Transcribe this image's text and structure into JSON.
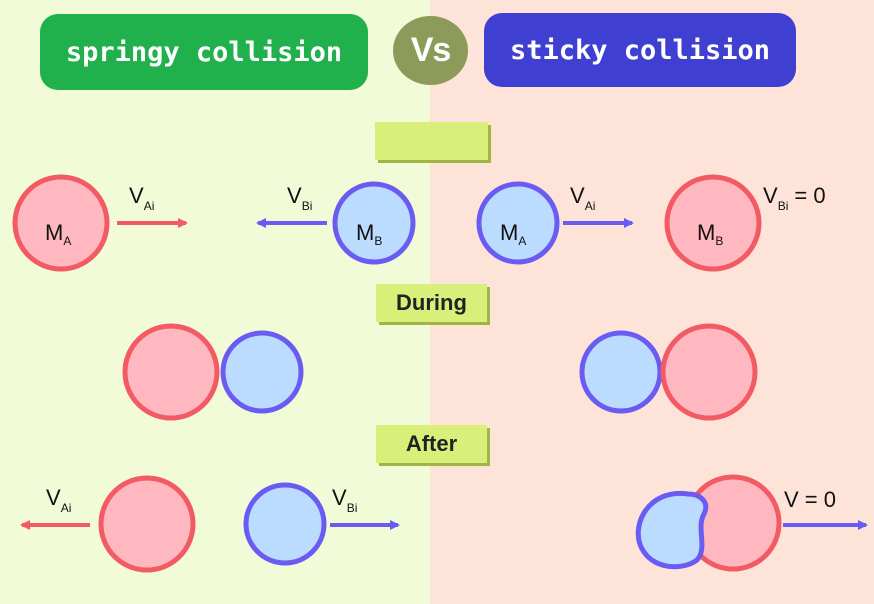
{
  "header": {
    "springy_title": "springy collision",
    "vs_label": "Vs",
    "sticky_title": "sticky collision"
  },
  "stages": {
    "before_label": "",
    "during_label": "During",
    "after_label": "After"
  },
  "labels": {
    "mass_a": "M",
    "mass_a_sub": "A",
    "mass_b": "M",
    "mass_b_sub": "B",
    "v": "V",
    "v_ai_sub": "Ai",
    "v_bi_sub": "Bi",
    "v_bi_zero": "= 0",
    "v_final": "V = 0"
  },
  "colors": {
    "red_fill": "#ffb8bf",
    "red_stroke": "#f25a64",
    "blue_fill": "#bcdcff",
    "blue_stroke": "#6a5cf2",
    "left_bg": "#f2fbd8",
    "right_bg": "#fde3d8",
    "springy_pill": "#20b04c",
    "sticky_pill": "#3f40d2",
    "vs_badge": "#8c9a5a",
    "stage_label": "#d8f07a"
  }
}
